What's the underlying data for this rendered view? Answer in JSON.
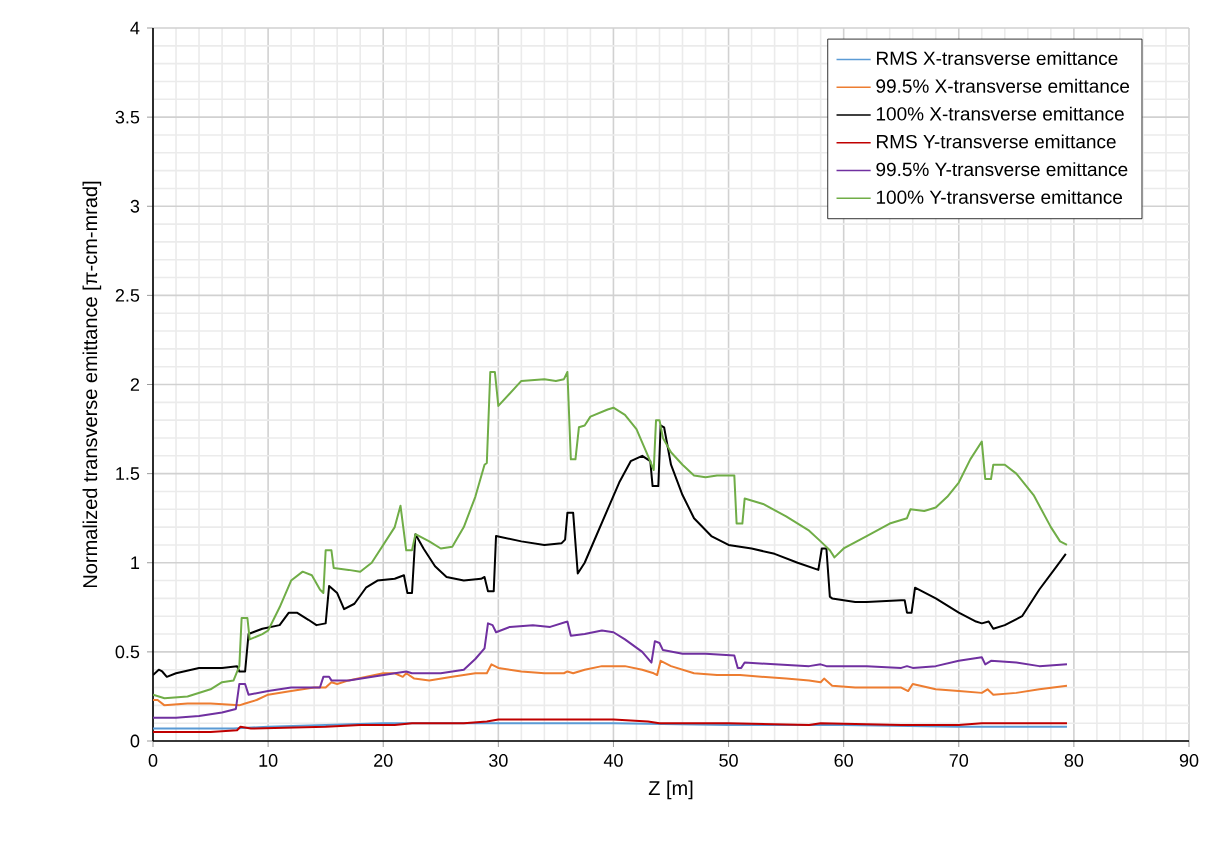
{
  "chart_data": {
    "type": "line",
    "xlabel": "Z [m]",
    "ylabel": "Normalized transverse emittance [π-cm-mrad]",
    "xlim": [
      0,
      90
    ],
    "xticks": [
      0,
      10,
      20,
      30,
      40,
      50,
      60,
      70,
      80,
      90
    ],
    "ylim": [
      0,
      4
    ],
    "yticks": [
      0,
      0.5,
      1,
      1.5,
      2,
      2.5,
      3,
      3.5,
      4
    ],
    "grid": true,
    "legend": "top right",
    "series": [
      {
        "name": "RMS X-transverse emittance",
        "color": "#5b9bd5",
        "x": [
          0,
          7,
          10,
          15,
          20,
          30,
          40,
          50,
          60,
          70,
          79.4
        ],
        "values": [
          0.07,
          0.07,
          0.08,
          0.09,
          0.1,
          0.1,
          0.1,
          0.09,
          0.09,
          0.08,
          0.08
        ]
      },
      {
        "name": "99.5% X-transverse emittance",
        "color": "#ed7d31",
        "x": [
          0,
          0.4,
          1,
          3,
          5,
          7.5,
          8,
          9,
          10,
          12,
          14,
          15,
          15.5,
          16,
          17,
          18.5,
          20,
          21,
          21.7,
          22,
          22.7,
          24,
          26,
          28,
          29,
          29.4,
          30,
          32,
          34,
          35.7,
          36,
          36.5,
          37.5,
          39,
          41,
          42.5,
          43.5,
          43.8,
          44.1,
          45,
          47,
          49,
          51,
          55,
          57,
          58,
          58.3,
          59,
          61,
          65,
          65.6,
          66,
          68,
          70,
          72,
          72.5,
          73,
          75,
          77,
          79.4
        ],
        "values": [
          0.23,
          0.23,
          0.2,
          0.21,
          0.21,
          0.2,
          0.21,
          0.23,
          0.26,
          0.28,
          0.3,
          0.3,
          0.33,
          0.32,
          0.34,
          0.36,
          0.38,
          0.38,
          0.36,
          0.38,
          0.35,
          0.34,
          0.36,
          0.38,
          0.38,
          0.43,
          0.41,
          0.39,
          0.38,
          0.38,
          0.39,
          0.38,
          0.4,
          0.42,
          0.42,
          0.4,
          0.38,
          0.37,
          0.45,
          0.42,
          0.38,
          0.37,
          0.37,
          0.35,
          0.34,
          0.33,
          0.35,
          0.31,
          0.3,
          0.3,
          0.28,
          0.32,
          0.29,
          0.28,
          0.27,
          0.29,
          0.26,
          0.27,
          0.29,
          0.31
        ]
      },
      {
        "name": "100% X-transverse emittance",
        "color": "#000000",
        "x": [
          0,
          0.5,
          0.8,
          1.2,
          2,
          4,
          6,
          7.3,
          7.5,
          8,
          8.3,
          9.5,
          11,
          11.8,
          12.5,
          13.5,
          14.2,
          15,
          15.3,
          16,
          16.6,
          17.5,
          18.5,
          19.5,
          21,
          21.8,
          22.1,
          22.5,
          22.8,
          23.5,
          24.5,
          25.5,
          27,
          28.5,
          28.8,
          29.1,
          29.6,
          29.8,
          32,
          34,
          35.5,
          35.8,
          36,
          36.5,
          36.9,
          37.5,
          38.5,
          39.5,
          40.5,
          41.5,
          42.5,
          43.2,
          43.4,
          43.9,
          44.1,
          44.4,
          45,
          46,
          47,
          48.5,
          50,
          51,
          52,
          54,
          56,
          57.8,
          58.1,
          58.5,
          58.8,
          59,
          61,
          62,
          65,
          65.3,
          65.5,
          65.9,
          66.2,
          68,
          70,
          71.5,
          72,
          72.6,
          73,
          74,
          75.5,
          77,
          78.5,
          79.3
        ],
        "values": [
          0.37,
          0.4,
          0.39,
          0.36,
          0.38,
          0.41,
          0.41,
          0.42,
          0.39,
          0.39,
          0.6,
          0.63,
          0.65,
          0.72,
          0.72,
          0.68,
          0.65,
          0.66,
          0.87,
          0.83,
          0.74,
          0.77,
          0.86,
          0.9,
          0.91,
          0.93,
          0.83,
          0.83,
          1.16,
          1.08,
          0.98,
          0.92,
          0.9,
          0.91,
          0.92,
          0.84,
          0.84,
          1.15,
          1.12,
          1.1,
          1.11,
          1.13,
          1.28,
          1.28,
          0.94,
          1.0,
          1.15,
          1.3,
          1.45,
          1.57,
          1.6,
          1.57,
          1.43,
          1.43,
          1.77,
          1.76,
          1.55,
          1.38,
          1.25,
          1.15,
          1.1,
          1.09,
          1.08,
          1.05,
          1.0,
          0.96,
          1.08,
          1.08,
          0.81,
          0.8,
          0.78,
          0.78,
          0.79,
          0.79,
          0.72,
          0.72,
          0.86,
          0.8,
          0.72,
          0.67,
          0.66,
          0.67,
          0.63,
          0.65,
          0.7,
          0.85,
          0.98,
          1.05
        ]
      },
      {
        "name": "RMS Y-transverse emittance",
        "color": "#c00000",
        "x": [
          0,
          5,
          7.3,
          7.6,
          8.5,
          15,
          18,
          21,
          22.5,
          27,
          29,
          30,
          36,
          40,
          43,
          44,
          50,
          57,
          58,
          65,
          70,
          72,
          79.4
        ],
        "values": [
          0.05,
          0.05,
          0.06,
          0.08,
          0.07,
          0.08,
          0.09,
          0.09,
          0.1,
          0.1,
          0.11,
          0.12,
          0.12,
          0.12,
          0.11,
          0.1,
          0.1,
          0.09,
          0.1,
          0.09,
          0.09,
          0.1,
          0.1
        ]
      },
      {
        "name": "99.5% Y-transverse emittance",
        "color": "#7030a0",
        "x": [
          0,
          2,
          4,
          6,
          7.2,
          7.5,
          8,
          8.3,
          10,
          12,
          14.5,
          14.8,
          15.3,
          15.5,
          17,
          19,
          21,
          22,
          22.5,
          25,
          27,
          28,
          28.8,
          29.1,
          29.5,
          29.8,
          31,
          33,
          34.5,
          36,
          36.3,
          37.5,
          39,
          40,
          41,
          42.5,
          43.3,
          43.6,
          44,
          44.3,
          46,
          48,
          50.5,
          50.8,
          51.1,
          51.4,
          54,
          57,
          58,
          58.5,
          62,
          65,
          65.5,
          66,
          68,
          70,
          72,
          72.3,
          72.8,
          75,
          77,
          79.4
        ],
        "values": [
          0.13,
          0.13,
          0.14,
          0.16,
          0.18,
          0.32,
          0.32,
          0.26,
          0.28,
          0.3,
          0.3,
          0.36,
          0.36,
          0.34,
          0.34,
          0.36,
          0.38,
          0.39,
          0.38,
          0.38,
          0.4,
          0.46,
          0.52,
          0.66,
          0.65,
          0.61,
          0.64,
          0.65,
          0.64,
          0.67,
          0.59,
          0.6,
          0.62,
          0.61,
          0.57,
          0.5,
          0.44,
          0.56,
          0.55,
          0.51,
          0.49,
          0.49,
          0.48,
          0.41,
          0.41,
          0.44,
          0.43,
          0.42,
          0.43,
          0.42,
          0.42,
          0.41,
          0.42,
          0.41,
          0.42,
          0.45,
          0.47,
          0.43,
          0.45,
          0.44,
          0.42,
          0.43
        ]
      },
      {
        "name": "100% Y-transverse emittance",
        "color": "#70ad47",
        "x": [
          0,
          1,
          3,
          5,
          6,
          7,
          7.5,
          7.7,
          8.2,
          8.4,
          9.5,
          10,
          11,
          12,
          13,
          13.8,
          14.5,
          14.8,
          15,
          15.5,
          15.7,
          17,
          18,
          19,
          20,
          21,
          21.5,
          22,
          22.5,
          22.8,
          24,
          25,
          26,
          27,
          28,
          28.8,
          29,
          29.3,
          29.7,
          30,
          31,
          32,
          34,
          35,
          35.7,
          36,
          36.3,
          36.7,
          37,
          37.5,
          38,
          39.5,
          40,
          41,
          42,
          43,
          43.5,
          43.7,
          44,
          44.3,
          45,
          46,
          47,
          48,
          49,
          50.5,
          50.7,
          51.2,
          51.4,
          53,
          55,
          57,
          58,
          58.8,
          59.2,
          60,
          62,
          64,
          65.5,
          65.8,
          67,
          68,
          69,
          70,
          71,
          72,
          72.3,
          72.8,
          73,
          74,
          75,
          76.5,
          78,
          78.8,
          79.4
        ],
        "values": [
          0.26,
          0.24,
          0.25,
          0.29,
          0.33,
          0.34,
          0.42,
          0.69,
          0.69,
          0.57,
          0.6,
          0.62,
          0.75,
          0.9,
          0.95,
          0.93,
          0.85,
          0.83,
          1.07,
          1.07,
          0.97,
          0.96,
          0.95,
          1.0,
          1.1,
          1.2,
          1.32,
          1.07,
          1.07,
          1.16,
          1.12,
          1.08,
          1.09,
          1.2,
          1.37,
          1.55,
          1.56,
          2.07,
          2.07,
          1.88,
          1.95,
          2.02,
          2.03,
          2.02,
          2.03,
          2.07,
          1.58,
          1.58,
          1.76,
          1.77,
          1.82,
          1.86,
          1.87,
          1.83,
          1.75,
          1.6,
          1.52,
          1.8,
          1.8,
          1.7,
          1.62,
          1.55,
          1.49,
          1.48,
          1.49,
          1.49,
          1.22,
          1.22,
          1.36,
          1.33,
          1.26,
          1.18,
          1.12,
          1.07,
          1.03,
          1.08,
          1.15,
          1.22,
          1.25,
          1.3,
          1.29,
          1.31,
          1.37,
          1.45,
          1.58,
          1.68,
          1.47,
          1.47,
          1.55,
          1.55,
          1.5,
          1.38,
          1.2,
          1.12,
          1.1
        ]
      }
    ]
  }
}
